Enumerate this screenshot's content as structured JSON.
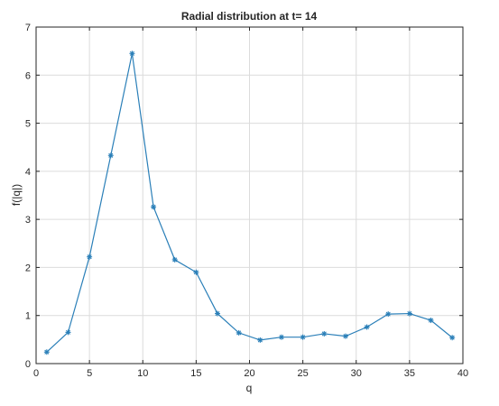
{
  "chart_data": {
    "type": "line",
    "title": "Radial distribution at t= 14",
    "xlabel": "q",
    "ylabel": "f(|q|)",
    "xlim": [
      0,
      40
    ],
    "ylim": [
      0,
      7
    ],
    "xticks": [
      "0",
      "5",
      "10",
      "15",
      "20",
      "25",
      "30",
      "35",
      "40"
    ],
    "yticks": [
      "0",
      "1",
      "2",
      "3",
      "4",
      "5",
      "6",
      "7"
    ],
    "grid": true,
    "marker": "asterisk",
    "color": "#2a7fb8",
    "series": [
      {
        "x": [
          1,
          3,
          5,
          7,
          9,
          11,
          13,
          15,
          17,
          19,
          21,
          23,
          25,
          27,
          29,
          31,
          33,
          35,
          37,
          39
        ],
        "values": [
          0.24,
          0.65,
          2.22,
          4.33,
          6.45,
          3.26,
          2.16,
          1.9,
          1.04,
          0.64,
          0.49,
          0.55,
          0.55,
          0.62,
          0.57,
          0.76,
          1.03,
          1.04,
          0.9,
          0.54
        ]
      }
    ]
  }
}
